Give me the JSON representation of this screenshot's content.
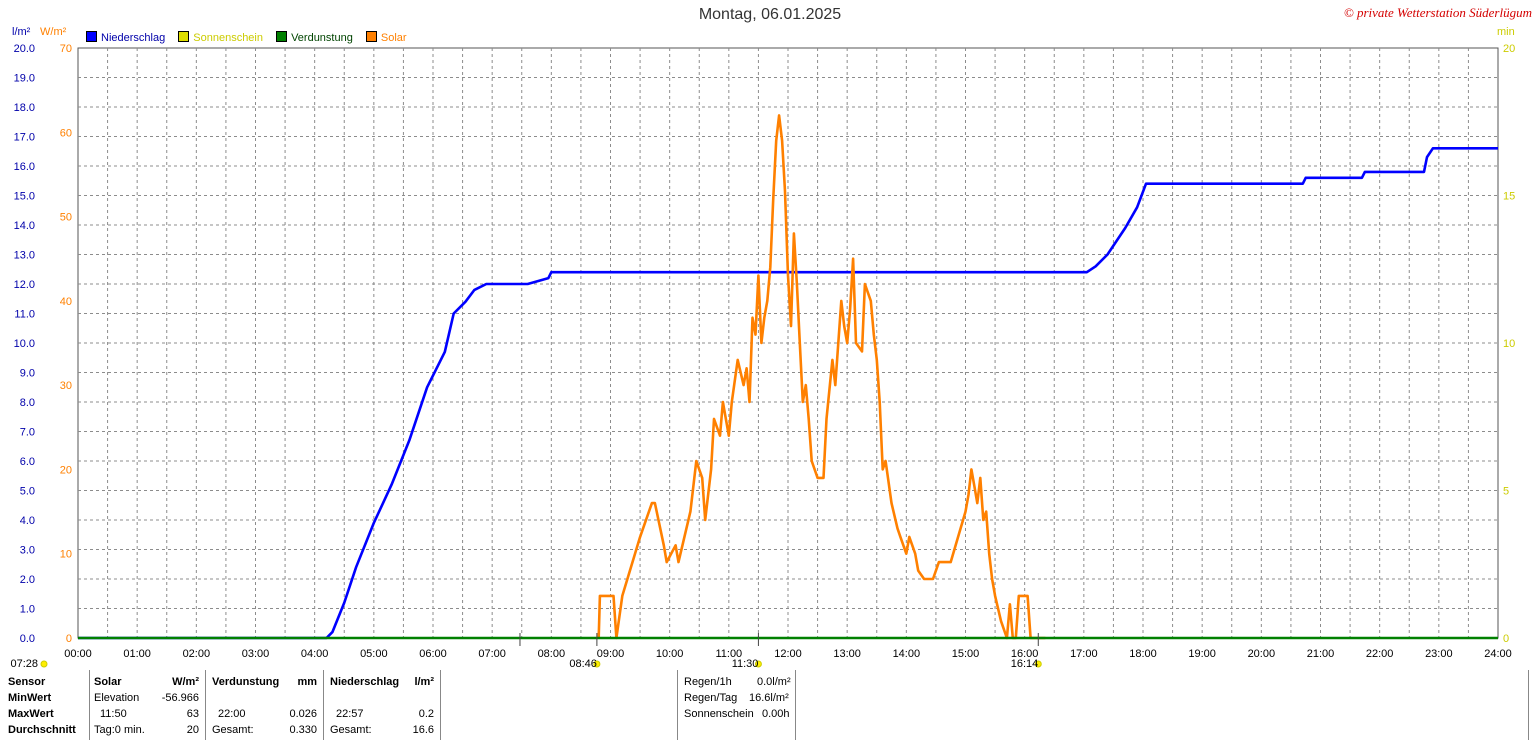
{
  "title": "Montag, 06.01.2025",
  "copyright": "© private Wetterstation Süderlügum",
  "units": {
    "left1": "l/m²",
    "left2": "W/m²",
    "right": "min"
  },
  "legend": [
    {
      "label": "Niederschlag",
      "color": "#0000ff",
      "text_color": "#0000aa"
    },
    {
      "label": "Sonnenschein",
      "color": "#dddd00",
      "text_color": "#cccc00"
    },
    {
      "label": "Verdunstung",
      "color": "#008000",
      "text_color": "#004400"
    },
    {
      "label": "Solar",
      "color": "#ff8000",
      "text_color": "#ff8000"
    }
  ],
  "chart_data": {
    "type": "line",
    "x_unit": "hours",
    "xlim": [
      0,
      24
    ],
    "x_tick_labels": [
      "00:00",
      "01:00",
      "02:00",
      "03:00",
      "04:00",
      "05:00",
      "06:00",
      "07:00",
      "08:00",
      "09:00",
      "10:00",
      "11:00",
      "12:00",
      "13:00",
      "14:00",
      "15:00",
      "16:00",
      "17:00",
      "18:00",
      "19:00",
      "20:00",
      "21:00",
      "22:00",
      "23:00",
      "24:00"
    ],
    "y_left_ticks": [
      "0.0",
      "1.0",
      "2.0",
      "3.0",
      "4.0",
      "5.0",
      "6.0",
      "7.0",
      "8.0",
      "9.0",
      "10.0",
      "11.0",
      "12.0",
      "13.0",
      "14.0",
      "15.0",
      "16.0",
      "17.0",
      "18.0",
      "19.0",
      "20.0"
    ],
    "y_left_lim": [
      0,
      20
    ],
    "y_solar_ticks": [
      "0",
      "10",
      "20",
      "30",
      "40",
      "50",
      "60",
      "70"
    ],
    "y_solar_lim": [
      0,
      70
    ],
    "y_right_ticks": [
      "0",
      "5",
      "10",
      "15",
      "20"
    ],
    "y_right_lim": [
      0,
      20
    ],
    "grid": true,
    "series": [
      {
        "name": "Niederschlag",
        "axis": "left",
        "color": "#0000ff",
        "x": [
          0,
          4.2,
          4.3,
          4.5,
          4.7,
          5.0,
          5.3,
          5.6,
          5.9,
          6.2,
          6.35,
          6.55,
          6.7,
          6.9,
          7.6,
          7.95,
          8.0,
          17.05,
          17.2,
          17.4,
          17.7,
          17.9,
          18.05,
          20.7,
          20.75,
          21.7,
          21.75,
          22.75,
          22.8,
          22.9,
          24
        ],
        "y": [
          0,
          0,
          0.2,
          1.2,
          2.4,
          3.9,
          5.2,
          6.7,
          8.5,
          9.7,
          11.0,
          11.4,
          11.8,
          12.0,
          12.0,
          12.2,
          12.4,
          12.4,
          12.6,
          13.0,
          13.9,
          14.6,
          15.4,
          15.4,
          15.6,
          15.6,
          15.8,
          15.8,
          16.3,
          16.6,
          16.6
        ]
      },
      {
        "name": "Solar",
        "axis": "solar",
        "color": "#ff8000",
        "x": [
          8.8,
          8.82,
          9.05,
          9.1,
          9.2,
          9.5,
          9.7,
          9.75,
          9.9,
          9.95,
          10.1,
          10.15,
          10.35,
          10.45,
          10.55,
          10.6,
          10.7,
          10.75,
          10.85,
          10.9,
          11.0,
          11.05,
          11.15,
          11.25,
          11.3,
          11.35,
          11.4,
          11.45,
          11.5,
          11.55,
          11.6,
          11.65,
          11.7,
          11.75,
          11.8,
          11.85,
          11.9,
          11.95,
          12.0,
          12.05,
          12.1,
          12.15,
          12.2,
          12.25,
          12.3,
          12.35,
          12.4,
          12.5,
          12.6,
          12.65,
          12.75,
          12.8,
          12.9,
          12.95,
          13.0,
          13.05,
          13.1,
          13.15,
          13.25,
          13.3,
          13.4,
          13.45,
          13.5,
          13.55,
          13.6,
          13.65,
          13.75,
          13.85,
          13.9,
          14.0,
          14.05,
          14.15,
          14.2,
          14.3,
          14.45,
          14.55,
          14.75,
          15.0,
          15.05,
          15.1,
          15.15,
          15.2,
          15.25,
          15.3,
          15.35,
          15.4,
          15.45,
          15.5,
          15.6,
          15.7,
          15.75,
          15.8,
          15.85,
          15.9,
          15.95,
          16.0,
          16.05,
          16.1,
          16.15,
          16.2,
          16.25,
          16.3,
          16.35
        ],
        "y": [
          0,
          5,
          5,
          0,
          5,
          12,
          16,
          16,
          11,
          9,
          11,
          9,
          15,
          21,
          19,
          14,
          20,
          26,
          24,
          28,
          24,
          28,
          33,
          30,
          32,
          28,
          38,
          36,
          43,
          35,
          38,
          40,
          44,
          52,
          59,
          62,
          59,
          53,
          43,
          37,
          48,
          42,
          35,
          28,
          30,
          26,
          21,
          19,
          19,
          26,
          33,
          30,
          40,
          37,
          35,
          39,
          45,
          35,
          34,
          42,
          40,
          36,
          33,
          28,
          20,
          21,
          16,
          13,
          12,
          10,
          12,
          10,
          8,
          7,
          7,
          9,
          9,
          15,
          17,
          20,
          18,
          16,
          19,
          14,
          15,
          10,
          7,
          5,
          2,
          0,
          4,
          0,
          0,
          5,
          5,
          5,
          5,
          0,
          0,
          0,
          0,
          0,
          0
        ],
        "note_pen": true
      },
      {
        "name": "Verdunstung",
        "axis": "left",
        "color": "#008000",
        "x": [
          0,
          24
        ],
        "y": [
          0,
          0
        ]
      }
    ],
    "markers": [
      {
        "label": "07:28",
        "x": 7.47
      },
      {
        "label": "08:46",
        "x": 8.77
      },
      {
        "label": "11:30",
        "x": 11.5
      },
      {
        "label": "16:14",
        "x": 16.23
      }
    ]
  },
  "stats": {
    "headers": {
      "sensor": "Sensor",
      "solar": "Solar",
      "solar_unit": "W/m²",
      "verd": "Verdunstung",
      "verd_unit": "mm",
      "nieder": "Niederschlag",
      "nieder_unit": "l/m²"
    },
    "rows": [
      {
        "label": "MinWert",
        "solar_time": "Elevation",
        "solar_val": "-56.966",
        "verd_time": "",
        "verd_val": "",
        "nieder_time": "",
        "nieder_val": ""
      },
      {
        "label": "MaxWert",
        "solar_time": "11:50",
        "solar_val": "63",
        "verd_time": "22:00",
        "verd_val": "0.026",
        "nieder_time": "22:57",
        "nieder_val": "0.2"
      },
      {
        "label": "Durchschnitt",
        "solar_time": "Tag:0 min.",
        "solar_val": "20",
        "verd_time": "Gesamt:",
        "verd_val": "0.330",
        "nieder_time": "Gesamt:",
        "nieder_val": "16.6"
      }
    ],
    "right": [
      {
        "label": "Regen/1h",
        "value": "0.0l/m²"
      },
      {
        "label": "Regen/Tag",
        "value": "16.6l/m²"
      },
      {
        "label": "Sonnenschein",
        "value": "0.00h"
      }
    ]
  }
}
